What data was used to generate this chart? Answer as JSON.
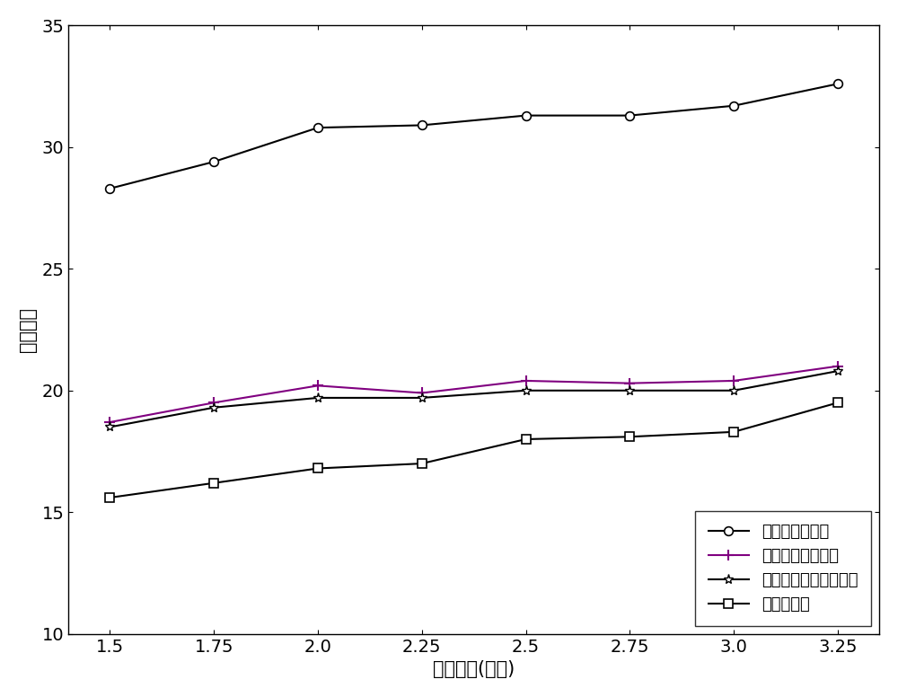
{
  "x": [
    1.5,
    1.75,
    2.0,
    2.25,
    2.5,
    2.75,
    3.0,
    3.25
  ],
  "epidemic": [
    28.3,
    29.4,
    30.8,
    30.9,
    31.3,
    31.3,
    31.7,
    32.6
  ],
  "spray": [
    18.7,
    19.5,
    20.2,
    19.9,
    20.4,
    20.3,
    20.4,
    21.0
  ],
  "social": [
    18.5,
    19.3,
    19.7,
    19.7,
    20.0,
    20.0,
    20.0,
    20.8
  ],
  "proposed": [
    15.6,
    16.2,
    16.8,
    17.0,
    18.0,
    18.1,
    18.3,
    19.5
  ],
  "xlim": [
    1.4,
    3.35
  ],
  "ylim": [
    10,
    35
  ],
  "xticks": [
    1.5,
    1.75,
    2.0,
    2.25,
    2.5,
    2.75,
    3.0,
    3.25
  ],
  "yticks": [
    10,
    15,
    20,
    25,
    30,
    35
  ],
  "xlabel": "生存时间(小时)",
  "ylabel": "网络开销",
  "legend": [
    "传染病路由方法",
    "喷射等待路由方法",
    "基于社会群体路由方法",
    "本发明方法"
  ],
  "line_color": "#000000",
  "spray_color": "#800080",
  "bg_color": "#ffffff",
  "font_size": 15,
  "tick_font_size": 14,
  "legend_font_size": 13
}
